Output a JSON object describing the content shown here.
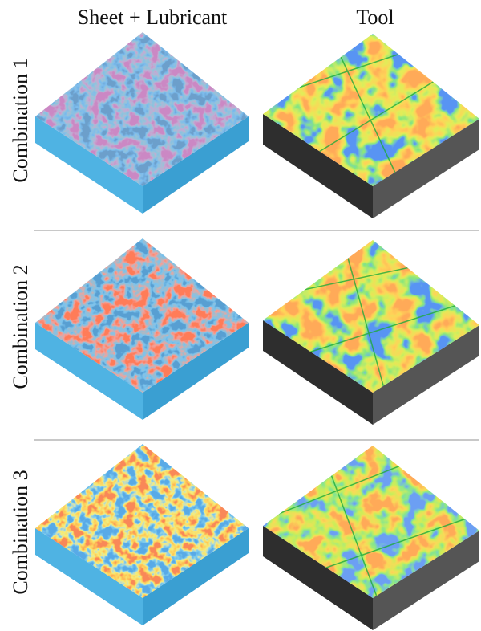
{
  "columns": [
    "Sheet + Lubricant",
    "Tool"
  ],
  "rows": [
    "Combination 1",
    "Combination 2",
    "Combination 3"
  ]
}
